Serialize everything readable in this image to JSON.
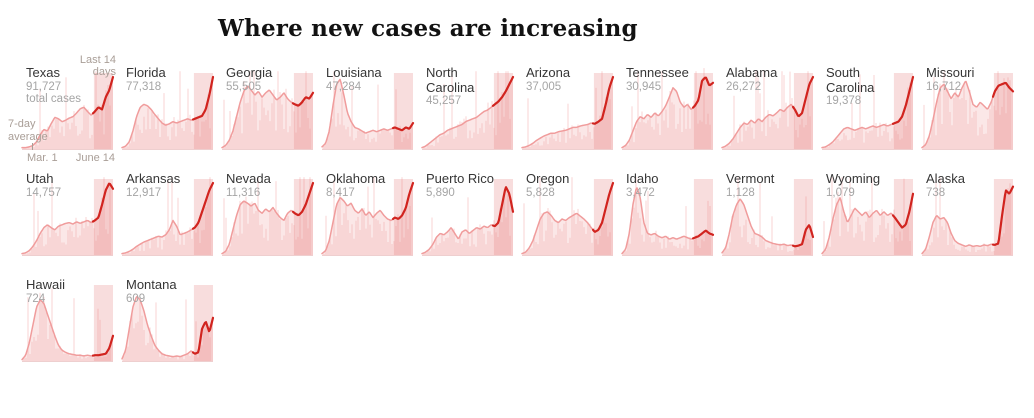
{
  "title": "Where new cases are increasing",
  "annotations": {
    "last14": "Last 14 days",
    "avg": "7-day average",
    "start_date": "Mar. 1",
    "end_date": "June 14",
    "total_suffix": "total cases"
  },
  "colors": {
    "area_fill": "#fbe7e7",
    "daily_bar": "rgba(240,158,158,0.35)",
    "last14_band": "rgba(229,123,123,0.26)",
    "avg_line": "#f09c9c",
    "last14_line": "#d1241f",
    "baseline": "#eecfcf",
    "state_label": "#363636",
    "count_label": "#a5a5a5",
    "annotation": "#a99e97",
    "title": "#121212"
  },
  "chart_data": {
    "type": "area",
    "description": "Small multiples of daily new COVID-19 cases per state, Mar. 1 to June 14; bars are daily counts, line is 7-day average, shaded band with red line marks the last 14 days. Shape values are normalized 0-1 trend of the 7-day average.",
    "x_range": [
      "Mar. 1",
      "June 14"
    ],
    "band_start": 0.79,
    "states": [
      {
        "name": "Texas",
        "total": "91,727",
        "shape": [
          0.02,
          0.02,
          0.03,
          0.05,
          0.1,
          0.2,
          0.27,
          0.25,
          0.35,
          0.44,
          0.42,
          0.38,
          0.4,
          0.43,
          0.45,
          0.5,
          0.56,
          0.58,
          0.52,
          0.47,
          0.52,
          0.58,
          0.55,
          0.72,
          0.82,
          1.0
        ]
      },
      {
        "name": "Florida",
        "total": "77,318",
        "shape": [
          0.02,
          0.04,
          0.1,
          0.25,
          0.45,
          0.58,
          0.62,
          0.6,
          0.55,
          0.48,
          0.42,
          0.36,
          0.33,
          0.35,
          0.38,
          0.36,
          0.38,
          0.4,
          0.42,
          0.4,
          0.42,
          0.44,
          0.46,
          0.55,
          0.75,
          1.0
        ]
      },
      {
        "name": "Georgia",
        "total": "55,505",
        "shape": [
          0.02,
          0.05,
          0.12,
          0.25,
          0.45,
          0.65,
          0.8,
          0.88,
          0.82,
          0.75,
          0.8,
          0.72,
          0.78,
          0.82,
          0.75,
          0.68,
          0.72,
          0.78,
          0.7,
          0.65,
          0.62,
          0.6,
          0.65,
          0.72,
          0.7,
          0.78
        ]
      },
      {
        "name": "Louisiana",
        "total": "47,284",
        "shape": [
          0.03,
          0.08,
          0.25,
          0.6,
          0.9,
          0.97,
          0.75,
          0.5,
          0.38,
          0.3,
          0.28,
          0.25,
          0.22,
          0.24,
          0.26,
          0.24,
          0.26,
          0.28,
          0.26,
          0.28,
          0.3,
          0.28,
          0.26,
          0.3,
          0.28,
          0.36
        ]
      },
      {
        "name": "North Carolina",
        "total": "45,257",
        "shape": [
          0.02,
          0.04,
          0.08,
          0.12,
          0.16,
          0.2,
          0.22,
          0.26,
          0.28,
          0.3,
          0.32,
          0.34,
          0.38,
          0.4,
          0.42,
          0.44,
          0.48,
          0.52,
          0.54,
          0.58,
          0.62,
          0.66,
          0.72,
          0.8,
          0.9,
          1.0
        ]
      },
      {
        "name": "Arizona",
        "total": "37,005",
        "shape": [
          0.02,
          0.03,
          0.05,
          0.08,
          0.12,
          0.15,
          0.18,
          0.2,
          0.22,
          0.22,
          0.24,
          0.25,
          0.26,
          0.28,
          0.3,
          0.3,
          0.32,
          0.33,
          0.34,
          0.36,
          0.35,
          0.38,
          0.42,
          0.62,
          0.85,
          1.0
        ]
      },
      {
        "name": "Tennessee",
        "total": "30,945",
        "shape": [
          0.02,
          0.05,
          0.12,
          0.25,
          0.38,
          0.45,
          0.42,
          0.48,
          0.44,
          0.5,
          0.46,
          0.52,
          0.6,
          0.72,
          0.85,
          0.8,
          0.65,
          0.58,
          0.62,
          0.55,
          0.6,
          0.68,
          0.95,
          1.0,
          0.88,
          0.92
        ]
      },
      {
        "name": "Alabama",
        "total": "26,272",
        "shape": [
          0.02,
          0.04,
          0.08,
          0.14,
          0.22,
          0.3,
          0.36,
          0.34,
          0.4,
          0.36,
          0.42,
          0.38,
          0.44,
          0.48,
          0.46,
          0.5,
          0.55,
          0.52,
          0.58,
          0.62,
          0.55,
          0.45,
          0.5,
          0.7,
          0.9,
          1.0
        ]
      },
      {
        "name": "South Carolina",
        "total": "19,378",
        "shape": [
          0.02,
          0.03,
          0.06,
          0.1,
          0.16,
          0.22,
          0.28,
          0.3,
          0.28,
          0.26,
          0.28,
          0.3,
          0.28,
          0.3,
          0.32,
          0.3,
          0.32,
          0.34,
          0.32,
          0.34,
          0.36,
          0.38,
          0.45,
          0.6,
          0.8,
          1.0
        ]
      },
      {
        "name": "Missouri",
        "total": "16,712",
        "shape": [
          0.02,
          0.06,
          0.18,
          0.4,
          0.65,
          0.85,
          0.9,
          0.8,
          0.7,
          0.78,
          0.72,
          0.85,
          0.95,
          0.8,
          0.62,
          0.58,
          0.65,
          0.6,
          0.55,
          0.65,
          0.8,
          0.88,
          0.9,
          0.92,
          0.85,
          0.8
        ]
      },
      {
        "name": "Utah",
        "total": "14,757",
        "shape": [
          0.02,
          0.03,
          0.06,
          0.12,
          0.2,
          0.3,
          0.38,
          0.42,
          0.38,
          0.35,
          0.4,
          0.42,
          0.44,
          0.45,
          0.43,
          0.46,
          0.44,
          0.46,
          0.48,
          0.45,
          0.48,
          0.52,
          0.7,
          0.9,
          1.0,
          0.92
        ]
      },
      {
        "name": "Arkansas",
        "total": "12,917",
        "shape": [
          0.02,
          0.03,
          0.05,
          0.08,
          0.12,
          0.15,
          0.18,
          0.2,
          0.22,
          0.24,
          0.26,
          0.25,
          0.28,
          0.35,
          0.48,
          0.4,
          0.28,
          0.3,
          0.32,
          0.35,
          0.38,
          0.45,
          0.6,
          0.75,
          0.9,
          1.0
        ]
      },
      {
        "name": "Nevada",
        "total": "11,316",
        "shape": [
          0.02,
          0.05,
          0.15,
          0.35,
          0.55,
          0.7,
          0.75,
          0.72,
          0.68,
          0.72,
          0.62,
          0.58,
          0.64,
          0.6,
          0.66,
          0.58,
          0.52,
          0.48,
          0.58,
          0.62,
          0.58,
          0.55,
          0.6,
          0.7,
          0.85,
          1.0
        ]
      },
      {
        "name": "Oklahoma",
        "total": "8,417",
        "shape": [
          0.02,
          0.06,
          0.2,
          0.45,
          0.7,
          0.8,
          0.75,
          0.68,
          0.72,
          0.62,
          0.58,
          0.64,
          0.55,
          0.6,
          0.52,
          0.58,
          0.62,
          0.55,
          0.5,
          0.48,
          0.52,
          0.5,
          0.55,
          0.65,
          0.85,
          1.0
        ]
      },
      {
        "name": "Puerto Rico",
        "total": "5,890",
        "shape": [
          0.02,
          0.04,
          0.08,
          0.15,
          0.25,
          0.3,
          0.28,
          0.32,
          0.38,
          0.3,
          0.22,
          0.32,
          0.35,
          0.3,
          0.34,
          0.38,
          0.36,
          0.4,
          0.38,
          0.42,
          0.4,
          0.45,
          0.7,
          0.95,
          0.85,
          0.6
        ]
      },
      {
        "name": "Oregon",
        "total": "5,828",
        "shape": [
          0.02,
          0.04,
          0.1,
          0.2,
          0.35,
          0.5,
          0.58,
          0.6,
          0.55,
          0.48,
          0.45,
          0.5,
          0.48,
          0.52,
          0.55,
          0.58,
          0.54,
          0.5,
          0.45,
          0.38,
          0.32,
          0.35,
          0.45,
          0.65,
          0.85,
          1.0
        ]
      },
      {
        "name": "Idaho",
        "total": "3,472",
        "shape": [
          0.02,
          0.08,
          0.3,
          0.7,
          0.95,
          0.8,
          0.45,
          0.3,
          0.28,
          0.3,
          0.26,
          0.24,
          0.26,
          0.22,
          0.24,
          0.22,
          0.24,
          0.26,
          0.24,
          0.22,
          0.24,
          0.26,
          0.3,
          0.34,
          0.3,
          0.28
        ]
      },
      {
        "name": "Vermont",
        "total": "1,128",
        "shape": [
          0.03,
          0.1,
          0.3,
          0.55,
          0.7,
          0.78,
          0.7,
          0.55,
          0.4,
          0.3,
          0.28,
          0.25,
          0.2,
          0.18,
          0.16,
          0.15,
          0.14,
          0.15,
          0.13,
          0.14,
          0.12,
          0.13,
          0.15,
          0.35,
          0.42,
          0.25
        ]
      },
      {
        "name": "Wyoming",
        "total": "1,079",
        "shape": [
          0.02,
          0.08,
          0.25,
          0.5,
          0.7,
          0.8,
          0.6,
          0.45,
          0.55,
          0.65,
          0.6,
          0.55,
          0.6,
          0.52,
          0.58,
          0.62,
          0.55,
          0.6,
          0.55,
          0.58,
          0.52,
          0.45,
          0.38,
          0.42,
          0.6,
          0.85
        ]
      },
      {
        "name": "Alaska",
        "total": "738",
        "shape": [
          0.02,
          0.08,
          0.25,
          0.45,
          0.55,
          0.5,
          0.52,
          0.45,
          0.3,
          0.2,
          0.16,
          0.14,
          0.12,
          0.14,
          0.12,
          0.13,
          0.12,
          0.14,
          0.13,
          0.15,
          0.14,
          0.16,
          0.55,
          0.9,
          0.85,
          0.95
        ]
      },
      {
        "name": "Hawaii",
        "total": "724",
        "shape": [
          0.02,
          0.08,
          0.25,
          0.5,
          0.75,
          0.85,
          0.8,
          0.65,
          0.5,
          0.35,
          0.22,
          0.15,
          0.12,
          0.1,
          0.09,
          0.08,
          0.08,
          0.07,
          0.08,
          0.07,
          0.08,
          0.08,
          0.09,
          0.1,
          0.18,
          0.35
        ]
      },
      {
        "name": "Montana",
        "total": "609",
        "shape": [
          0.03,
          0.15,
          0.45,
          0.75,
          0.9,
          0.85,
          0.7,
          0.5,
          0.35,
          0.22,
          0.15,
          0.1,
          0.08,
          0.07,
          0.06,
          0.07,
          0.06,
          0.08,
          0.1,
          0.14,
          0.1,
          0.12,
          0.45,
          0.55,
          0.4,
          0.6
        ]
      }
    ]
  }
}
